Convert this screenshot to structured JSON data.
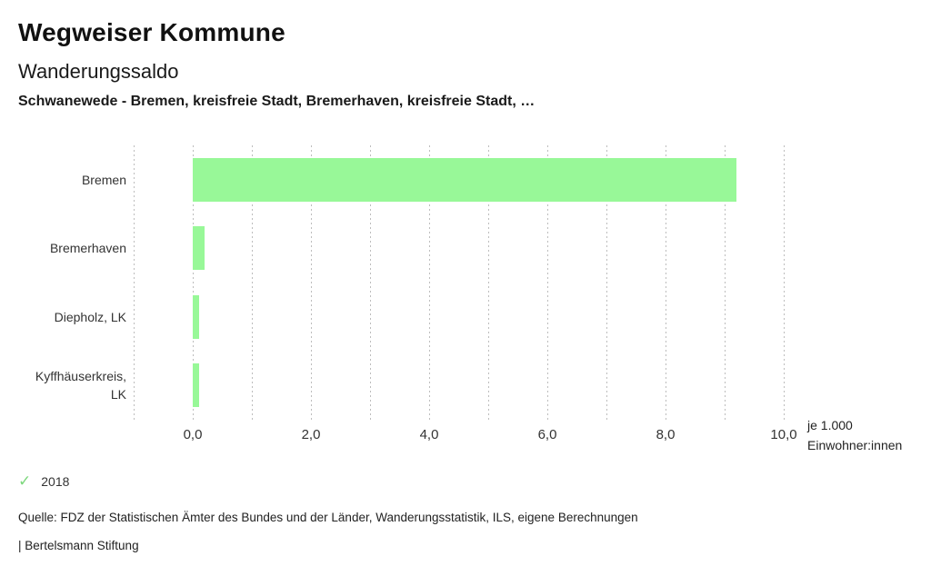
{
  "header": {
    "title": "Wegweiser Kommune",
    "subtitle": "Wanderungssaldo",
    "comparison": "Schwanewede - Bremen, kreisfreie Stadt, Bremerhaven, kreisfreie Stadt, …"
  },
  "legend": {
    "check_icon": "✓",
    "year": "2018"
  },
  "footer": {
    "source": "Quelle: FDZ der Statistischen Ämter des Bundes und der Länder, Wanderungsstatistik, ILS, eigene Berechnungen",
    "branding": "| Bertelsmann Stiftung"
  },
  "colors": {
    "bar": "#98f898",
    "gridline": "#bdbdbd",
    "legend_check": "#7dd87d",
    "text": "#1a1a1a",
    "muted_text": "#333333"
  },
  "chart_data": {
    "type": "bar",
    "orientation": "horizontal",
    "title": "Wanderungssaldo",
    "subtitle": "Schwanewede - Bremen, kreisfreie Stadt, Bremerhaven, kreisfreie Stadt, …",
    "categories": [
      "Bremen",
      "Bremerhaven",
      "Diepholz, LK",
      "Kyffhäuserkreis, LK"
    ],
    "series": [
      {
        "name": "2018",
        "values": [
          9.2,
          0.2,
          0.1,
          0.1
        ]
      }
    ],
    "values": [
      9.2,
      0.2,
      0.1,
      0.1
    ],
    "xlabel": "je 1.000 Einwohner:innen",
    "xlabel_lines": [
      "je 1.000",
      "Einwohner:innen"
    ],
    "ylabel": "",
    "xlim": [
      -1,
      10
    ],
    "xticks": [
      {
        "value": 0,
        "label": "0,0"
      },
      {
        "value": 2,
        "label": "2,0"
      },
      {
        "value": 4,
        "label": "4,0"
      },
      {
        "value": 6,
        "label": "6,0"
      },
      {
        "value": 8,
        "label": "8,0"
      },
      {
        "value": 10,
        "label": "10,0"
      }
    ],
    "gridline_values": [
      -1,
      0,
      1,
      2,
      3,
      4,
      5,
      6,
      7,
      8,
      9,
      10
    ],
    "grid": true,
    "legend_position": "bottom-left"
  }
}
